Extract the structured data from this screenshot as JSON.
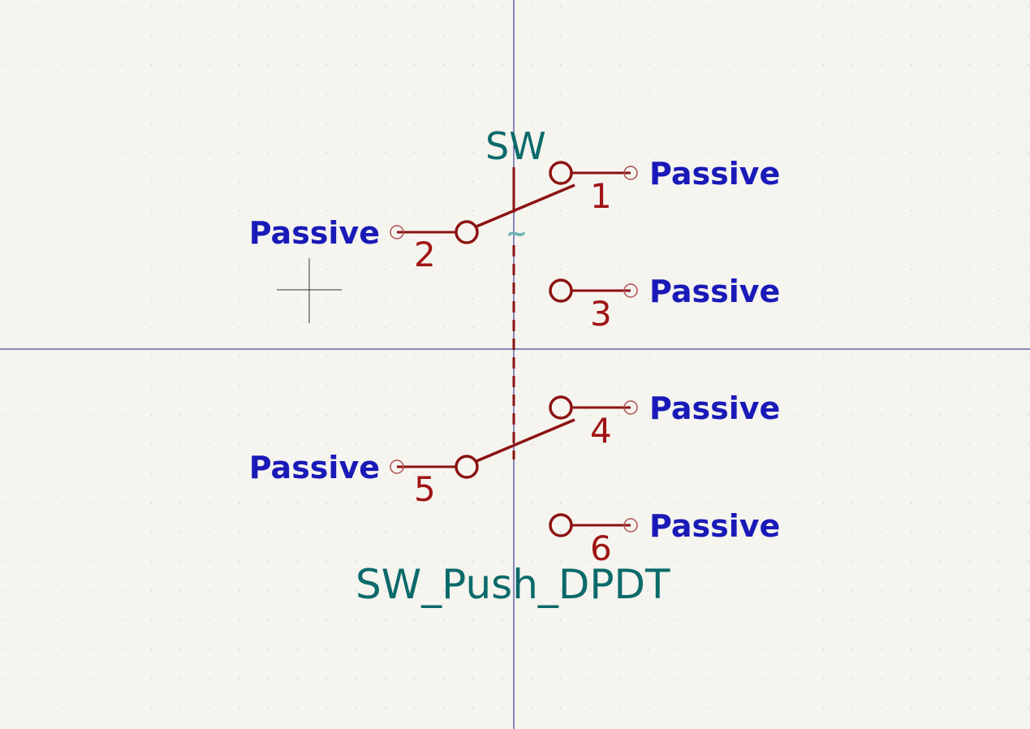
{
  "symbol": {
    "reference": "SW",
    "value": "SW_Push_DPDT",
    "hint_glyph": "~"
  },
  "pins": [
    {
      "number": "1",
      "type": "Passive"
    },
    {
      "number": "2",
      "type": "Passive"
    },
    {
      "number": "3",
      "type": "Passive"
    },
    {
      "number": "4",
      "type": "Passive"
    },
    {
      "number": "5",
      "type": "Passive"
    },
    {
      "number": "6",
      "type": "Passive"
    }
  ],
  "colors": {
    "background": "#f5f4ef",
    "grid_dot": "#c8c8c0",
    "axis": "#1c1c8c",
    "symbol_body": "#8c1212",
    "pin_type_text": "#1a1ab8",
    "field_text": "#0b6a6a",
    "cursor": "#333333"
  }
}
